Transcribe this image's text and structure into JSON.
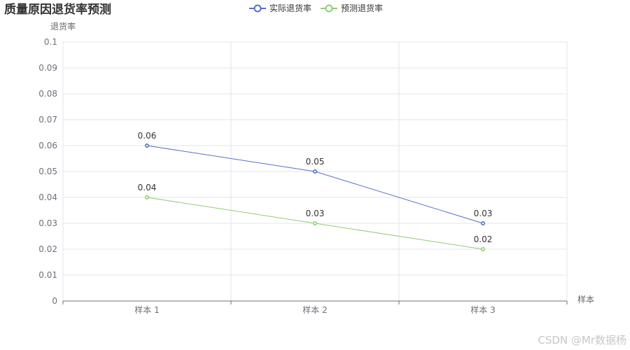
{
  "chart_data": {
    "type": "line",
    "title": "质量原因退货率预测",
    "xlabel": "样本",
    "ylabel": "退货率",
    "categories": [
      "样本 1",
      "样本 2",
      "样本 3"
    ],
    "ylim": [
      0,
      0.1
    ],
    "yticks": [
      "0",
      "0.01",
      "0.02",
      "0.03",
      "0.04",
      "0.05",
      "0.06",
      "0.07",
      "0.08",
      "0.09",
      "0.1"
    ],
    "grid": true,
    "legend_position": "top-center",
    "series": [
      {
        "name": "实际退货率",
        "color": "#5470c6",
        "values": [
          0.06,
          0.05,
          0.03
        ],
        "labels": [
          "0.06",
          "0.05",
          "0.03"
        ]
      },
      {
        "name": "预测退货率",
        "color": "#91cc75",
        "values": [
          0.04,
          0.03,
          0.02
        ],
        "labels": [
          "0.04",
          "0.03",
          "0.02"
        ]
      }
    ]
  },
  "watermark": "CSDN @Mr数据杨"
}
